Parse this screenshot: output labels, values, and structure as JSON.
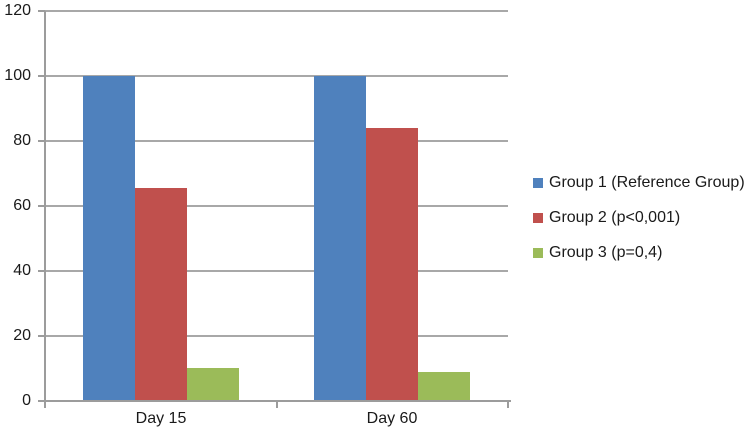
{
  "chart_data": {
    "type": "bar",
    "title": "",
    "categories": [
      "Day 15",
      "Day 60"
    ],
    "series": [
      {
        "name": "Group 1 (Reference Group)",
        "color": "#4F81BD",
        "values": [
          100,
          100
        ]
      },
      {
        "name": "Group 2 (p<0,001)",
        "color": "#C0504D",
        "values": [
          65.5,
          84
        ]
      },
      {
        "name": "Group 3 (p=0,4)",
        "color": "#9BBB59",
        "values": [
          10,
          9
        ]
      }
    ],
    "ylim": [
      0,
      120
    ],
    "ytick_step": 20,
    "ytick_labels": [
      "0",
      "20",
      "40",
      "60",
      "80",
      "100",
      "120"
    ],
    "xlabel": "",
    "ylabel": "",
    "grid": true,
    "legend_position": "right"
  },
  "colors": {
    "background": "#FFFFFF",
    "gridline": "#A8A8A8",
    "axis": "#9C9C9C",
    "text": "#1A1A1A"
  }
}
